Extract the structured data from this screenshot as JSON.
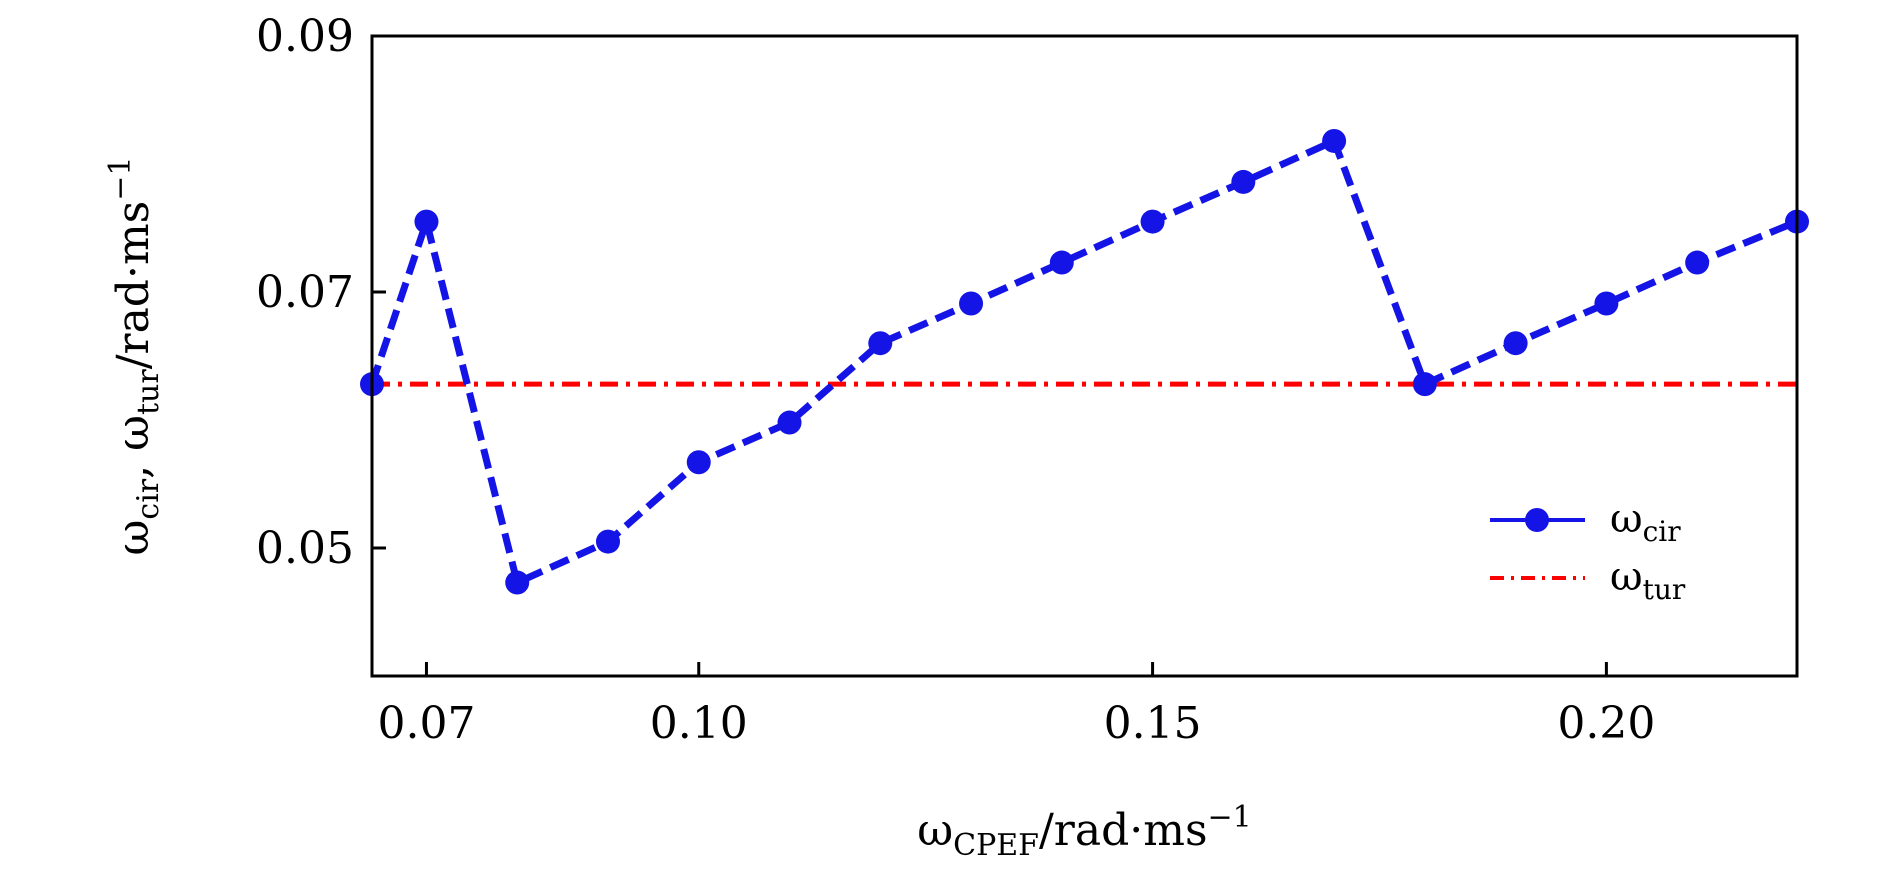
{
  "chart_data": {
    "type": "line",
    "xlabel": "ωCPEF/rad·ms−1",
    "ylabel": "ωcir, ωtur/rad·ms−1",
    "xlabel_main": "ω",
    "xlabel_sub": "CPEF",
    "xlabel_unit": "/rad·ms",
    "xlabel_sup": "−1",
    "ylabel_main1": "ω",
    "ylabel_sub1": "cir",
    "ylabel_sep": ", ω",
    "ylabel_sub2": "tur",
    "ylabel_unit": "/rad·ms",
    "ylabel_sup": "−1",
    "xlim": [
      0.064,
      0.221
    ],
    "ylim": [
      0.04,
      0.09
    ],
    "xticks": [
      0.07,
      0.1,
      0.15,
      0.2
    ],
    "xtick_labels": [
      "0.07",
      "0.10",
      "0.15",
      "0.20"
    ],
    "yticks": [
      0.05,
      0.07,
      0.09
    ],
    "ytick_labels": [
      "0.05",
      "0.07",
      "0.09"
    ],
    "grid": false,
    "legend_position": "lower-right",
    "series": [
      {
        "name": "ωcir",
        "name_main": "ω",
        "name_sub": "cir",
        "style": "dashed-with-markers",
        "color": "#1414e6",
        "x": [
          0.064,
          0.07,
          0.08,
          0.09,
          0.1,
          0.11,
          0.12,
          0.13,
          0.14,
          0.15,
          0.16,
          0.17,
          0.18,
          0.19,
          0.2,
          0.21,
          0.221
        ],
        "y": [
          0.0628,
          0.0755,
          0.0473,
          0.0505,
          0.0567,
          0.0598,
          0.066,
          0.0691,
          0.0723,
          0.0755,
          0.0786,
          0.0818,
          0.0628,
          0.066,
          0.0691,
          0.0723,
          0.0755
        ]
      },
      {
        "name": "ωtur",
        "name_main": "ω",
        "name_sub": "tur",
        "style": "dash-dot",
        "color": "#ff0000",
        "x": [
          0.064,
          0.221
        ],
        "y": [
          0.0628,
          0.0628
        ]
      }
    ]
  }
}
